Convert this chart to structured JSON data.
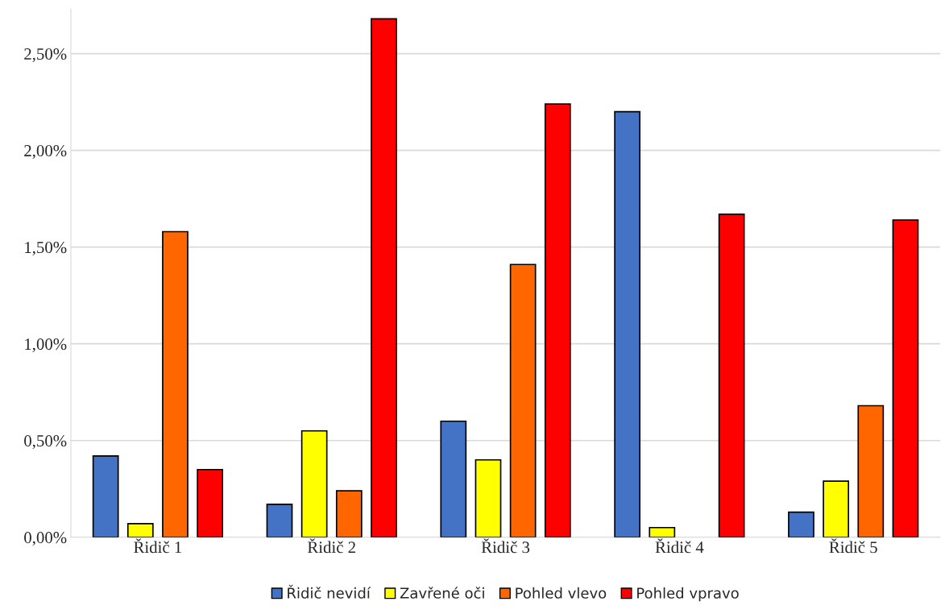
{
  "chart_data": {
    "type": "bar",
    "categories": [
      "Řidič 1",
      "Řidič 2",
      "Řidič 3",
      "Řidič 4",
      "Řidič 5"
    ],
    "series": [
      {
        "name": "Řidič nevidí",
        "color": "#4472c4",
        "values": [
          0.42,
          0.17,
          0.6,
          2.2,
          0.13
        ]
      },
      {
        "name": "Zavřené oči",
        "color": "#ffff00",
        "values": [
          0.07,
          0.55,
          0.4,
          0.05,
          0.29
        ]
      },
      {
        "name": "Pohled vlevo",
        "color": "#ff6600",
        "values": [
          1.58,
          0.24,
          1.41,
          0,
          0.68
        ]
      },
      {
        "name": "Pohled vpravo",
        "color": "#ff0000",
        "values": [
          0.35,
          2.68,
          2.24,
          1.67,
          1.64
        ]
      }
    ],
    "ylim": [
      0,
      2.73
    ],
    "yticks": [
      {
        "value": 0,
        "label": "0,00%"
      },
      {
        "value": 0.5,
        "label": "0,50%"
      },
      {
        "value": 1,
        "label": "1,00%"
      },
      {
        "value": 1.5,
        "label": "1,50%"
      },
      {
        "value": 2,
        "label": "2,00%"
      },
      {
        "value": 2.5,
        "label": "2,50%"
      }
    ],
    "grid": "y",
    "legend": "bottom"
  }
}
